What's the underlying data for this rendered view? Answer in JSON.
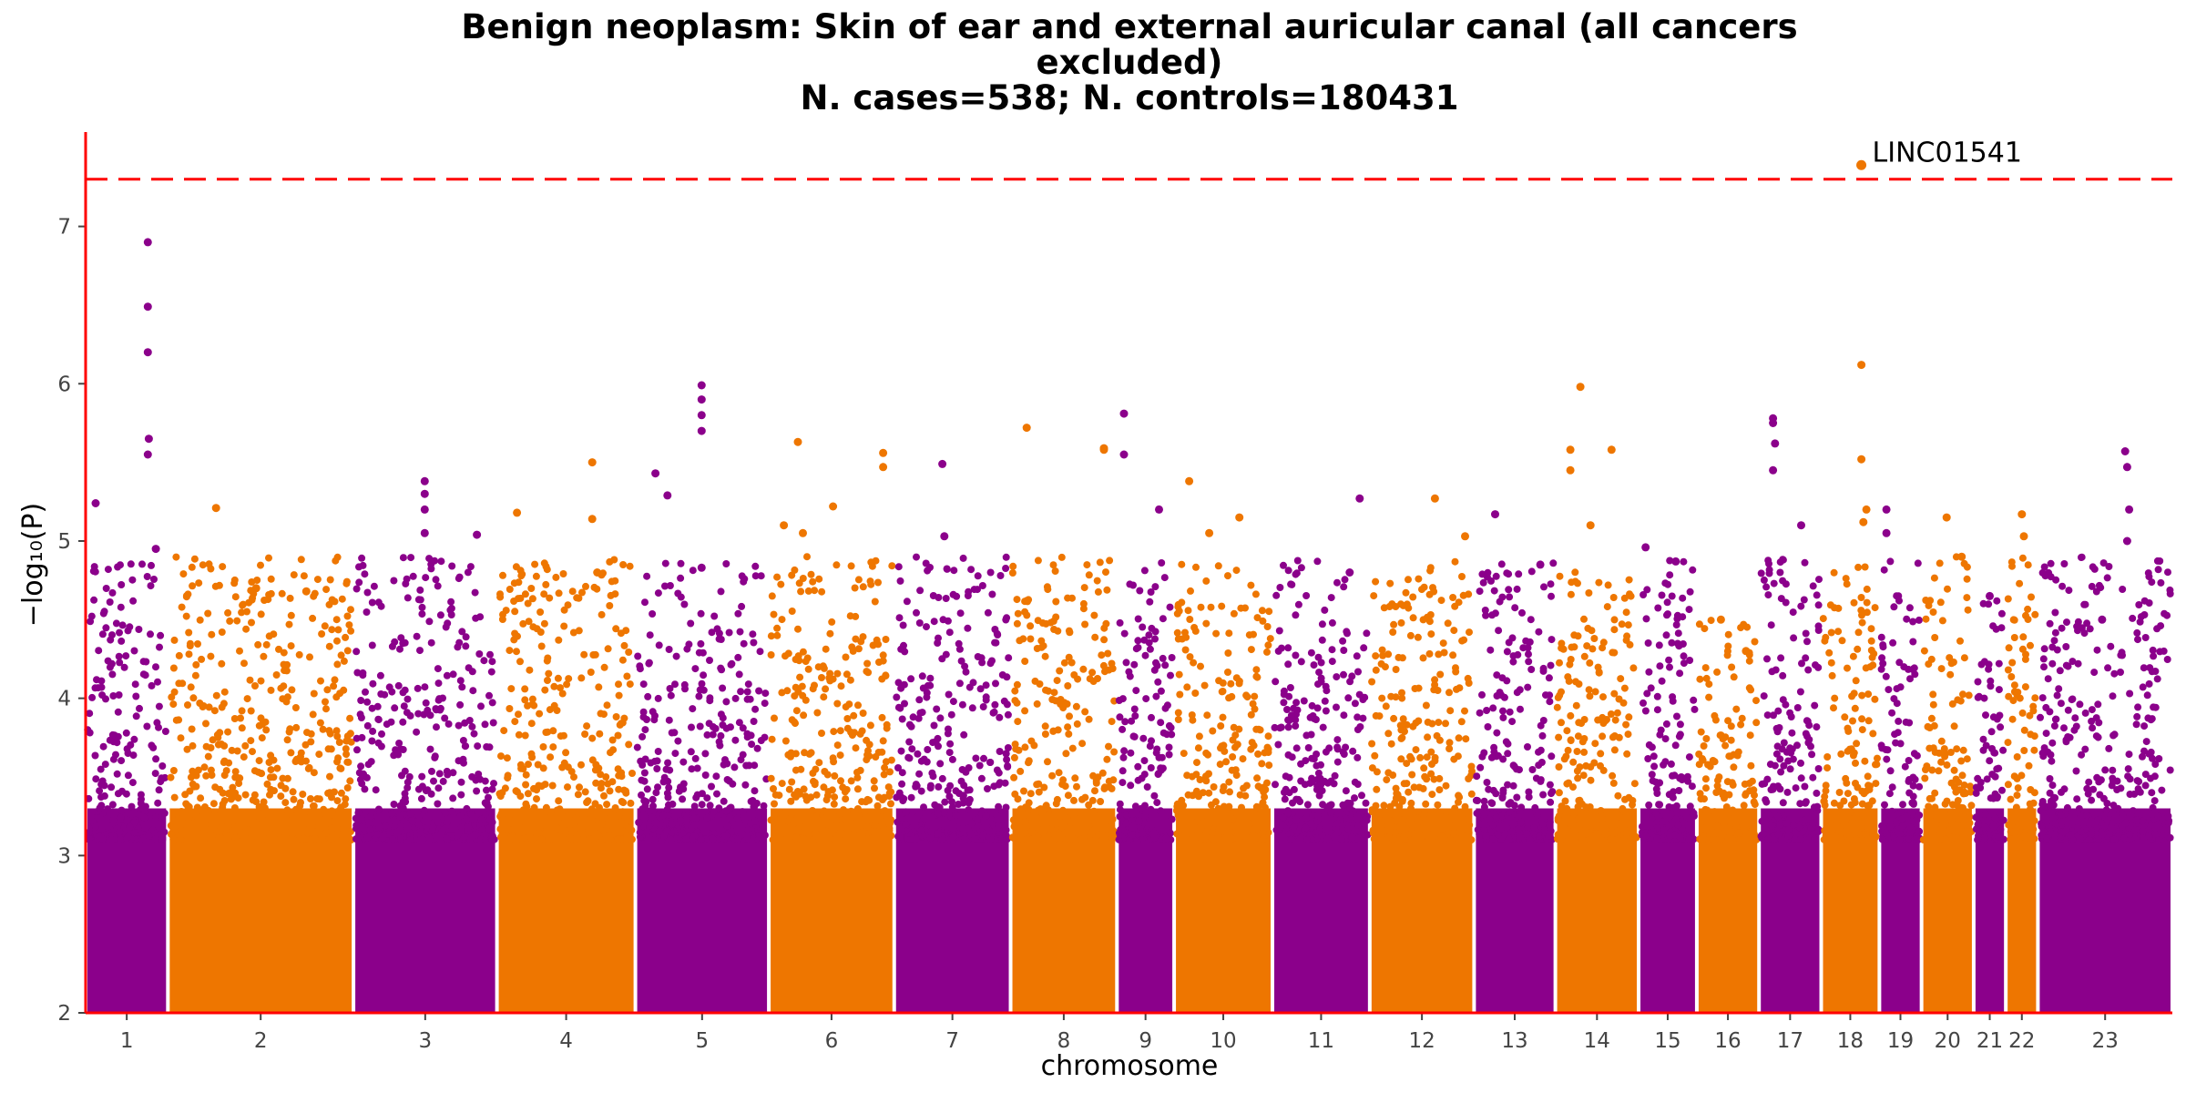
{
  "chart_data": {
    "type": "scatter",
    "title_lines": [
      "Benign neoplasm: Skin of ear and external auricular canal (all cancers",
      "excluded)",
      "N. cases=538; N. controls=180431"
    ],
    "xlabel": "chromosome",
    "ylabel": "−log₁₀(P)",
    "ylim": [
      2,
      7.6
    ],
    "yticks": [
      2,
      3,
      4,
      5,
      6,
      7
    ],
    "significance_line": 7.3,
    "colors": {
      "odd": "#8B008B",
      "even": "#EE7600",
      "threshold": "#FF0000",
      "axis": "#FF0000"
    },
    "chromosomes": [
      {
        "label": "1",
        "start": 0,
        "end": 82,
        "max": 6.9,
        "peaks": [
          [
            10,
            5.24
          ],
          [
            62,
            6.9
          ],
          [
            62,
            6.49
          ],
          [
            62,
            6.2
          ],
          [
            63,
            5.65
          ],
          [
            62,
            5.55
          ],
          [
            70,
            4.95
          ]
        ]
      },
      {
        "label": "2",
        "start": 82,
        "end": 267,
        "max": 5.21,
        "peaks": [
          [
            130,
            5.21
          ],
          [
            170,
            4.7
          ],
          [
            220,
            4.68
          ]
        ]
      },
      {
        "label": "3",
        "start": 267,
        "end": 410,
        "max": 5.38,
        "peaks": [
          [
            338,
            5.38
          ],
          [
            338,
            5.3
          ],
          [
            338,
            5.2
          ],
          [
            338,
            5.05
          ],
          [
            390,
            5.04
          ]
        ]
      },
      {
        "label": "4",
        "start": 410,
        "end": 548,
        "max": 5.5,
        "peaks": [
          [
            430,
            5.18
          ],
          [
            505,
            5.5
          ],
          [
            505,
            5.14
          ],
          [
            510,
            4.8
          ]
        ]
      },
      {
        "label": "5",
        "start": 548,
        "end": 681,
        "max": 5.99,
        "peaks": [
          [
            568,
            5.43
          ],
          [
            580,
            5.29
          ],
          [
            614,
            5.99
          ],
          [
            614,
            5.9
          ],
          [
            614,
            5.8
          ],
          [
            614,
            5.7
          ],
          [
            614,
            4.83
          ]
        ]
      },
      {
        "label": "6",
        "start": 681,
        "end": 806,
        "max": 5.63,
        "peaks": [
          [
            696,
            5.1
          ],
          [
            710,
            5.63
          ],
          [
            715,
            5.05
          ],
          [
            745,
            5.22
          ],
          [
            795,
            5.56
          ],
          [
            795,
            5.47
          ]
        ]
      },
      {
        "label": "7",
        "start": 806,
        "end": 922,
        "max": 5.49,
        "peaks": [
          [
            854,
            5.49
          ],
          [
            856,
            5.03
          ]
        ]
      },
      {
        "label": "8",
        "start": 922,
        "end": 1028,
        "max": 5.72,
        "peaks": [
          [
            938,
            5.72
          ],
          [
            1015,
            5.59
          ],
          [
            1015,
            5.58
          ]
        ]
      },
      {
        "label": "9",
        "start": 1028,
        "end": 1085,
        "max": 5.81,
        "peaks": [
          [
            1035,
            5.81
          ],
          [
            1035,
            5.55
          ],
          [
            1070,
            5.2
          ]
        ]
      },
      {
        "label": "10",
        "start": 1085,
        "end": 1183,
        "max": 5.38,
        "peaks": [
          [
            1100,
            5.38
          ],
          [
            1120,
            5.05
          ],
          [
            1150,
            5.15
          ]
        ]
      },
      {
        "label": "11",
        "start": 1183,
        "end": 1280,
        "max": 5.27,
        "peaks": [
          [
            1270,
            5.27
          ],
          [
            1260,
            4.8
          ]
        ]
      },
      {
        "label": "12",
        "start": 1280,
        "end": 1384,
        "max": 5.27,
        "peaks": [
          [
            1345,
            5.27
          ],
          [
            1375,
            5.03
          ]
        ]
      },
      {
        "label": "13",
        "start": 1384,
        "end": 1465,
        "max": 5.17,
        "peaks": [
          [
            1405,
            5.17
          ],
          [
            1450,
            4.85
          ]
        ]
      },
      {
        "label": "14",
        "start": 1465,
        "end": 1548,
        "max": 5.98,
        "peaks": [
          [
            1480,
            5.58
          ],
          [
            1480,
            5.45
          ],
          [
            1490,
            5.98
          ],
          [
            1521,
            5.58
          ],
          [
            1500,
            5.1
          ]
        ]
      },
      {
        "label": "15",
        "start": 1548,
        "end": 1606,
        "max": 4.96,
        "peaks": [
          [
            1555,
            4.96
          ],
          [
            1585,
            4.87
          ]
        ]
      },
      {
        "label": "16",
        "start": 1606,
        "end": 1668,
        "max": 4.5,
        "peaks": [
          [
            1630,
            4.5
          ],
          [
            1655,
            4.3
          ]
        ]
      },
      {
        "label": "17",
        "start": 1668,
        "end": 1730,
        "max": 5.78,
        "peaks": [
          [
            1682,
            5.78
          ],
          [
            1682,
            5.75
          ],
          [
            1684,
            5.62
          ],
          [
            1682,
            5.45
          ],
          [
            1710,
            5.1
          ]
        ]
      },
      {
        "label": "18",
        "start": 1730,
        "end": 1788,
        "max": 7.39,
        "peaks": [
          [
            1770,
            7.39
          ],
          [
            1770,
            6.12
          ],
          [
            1770,
            5.52
          ],
          [
            1775,
            5.2
          ],
          [
            1772,
            5.12
          ]
        ]
      },
      {
        "label": "19",
        "start": 1788,
        "end": 1830,
        "max": 5.2,
        "peaks": [
          [
            1795,
            5.2
          ],
          [
            1795,
            5.05
          ]
        ]
      },
      {
        "label": "20",
        "start": 1830,
        "end": 1882,
        "max": 5.15,
        "peaks": [
          [
            1855,
            5.15
          ],
          [
            1870,
            4.9
          ]
        ]
      },
      {
        "label": "21",
        "start": 1882,
        "end": 1914,
        "max": 4.65,
        "peaks": [
          [
            1898,
            4.65
          ]
        ]
      },
      {
        "label": "22",
        "start": 1914,
        "end": 1946,
        "max": 5.17,
        "peaks": [
          [
            1930,
            5.17
          ],
          [
            1932,
            5.03
          ]
        ]
      },
      {
        "label": "23",
        "start": 1946,
        "end": 2080,
        "max": 5.57,
        "peaks": [
          [
            2033,
            5.57
          ],
          [
            2035,
            5.47
          ],
          [
            2037,
            5.2
          ],
          [
            2035,
            5.0
          ],
          [
            2010,
            4.5
          ]
        ]
      }
    ],
    "annotations": [
      {
        "label": "LINC01541",
        "chromosome": "18",
        "x": 1770,
        "y": 7.39
      }
    ]
  }
}
